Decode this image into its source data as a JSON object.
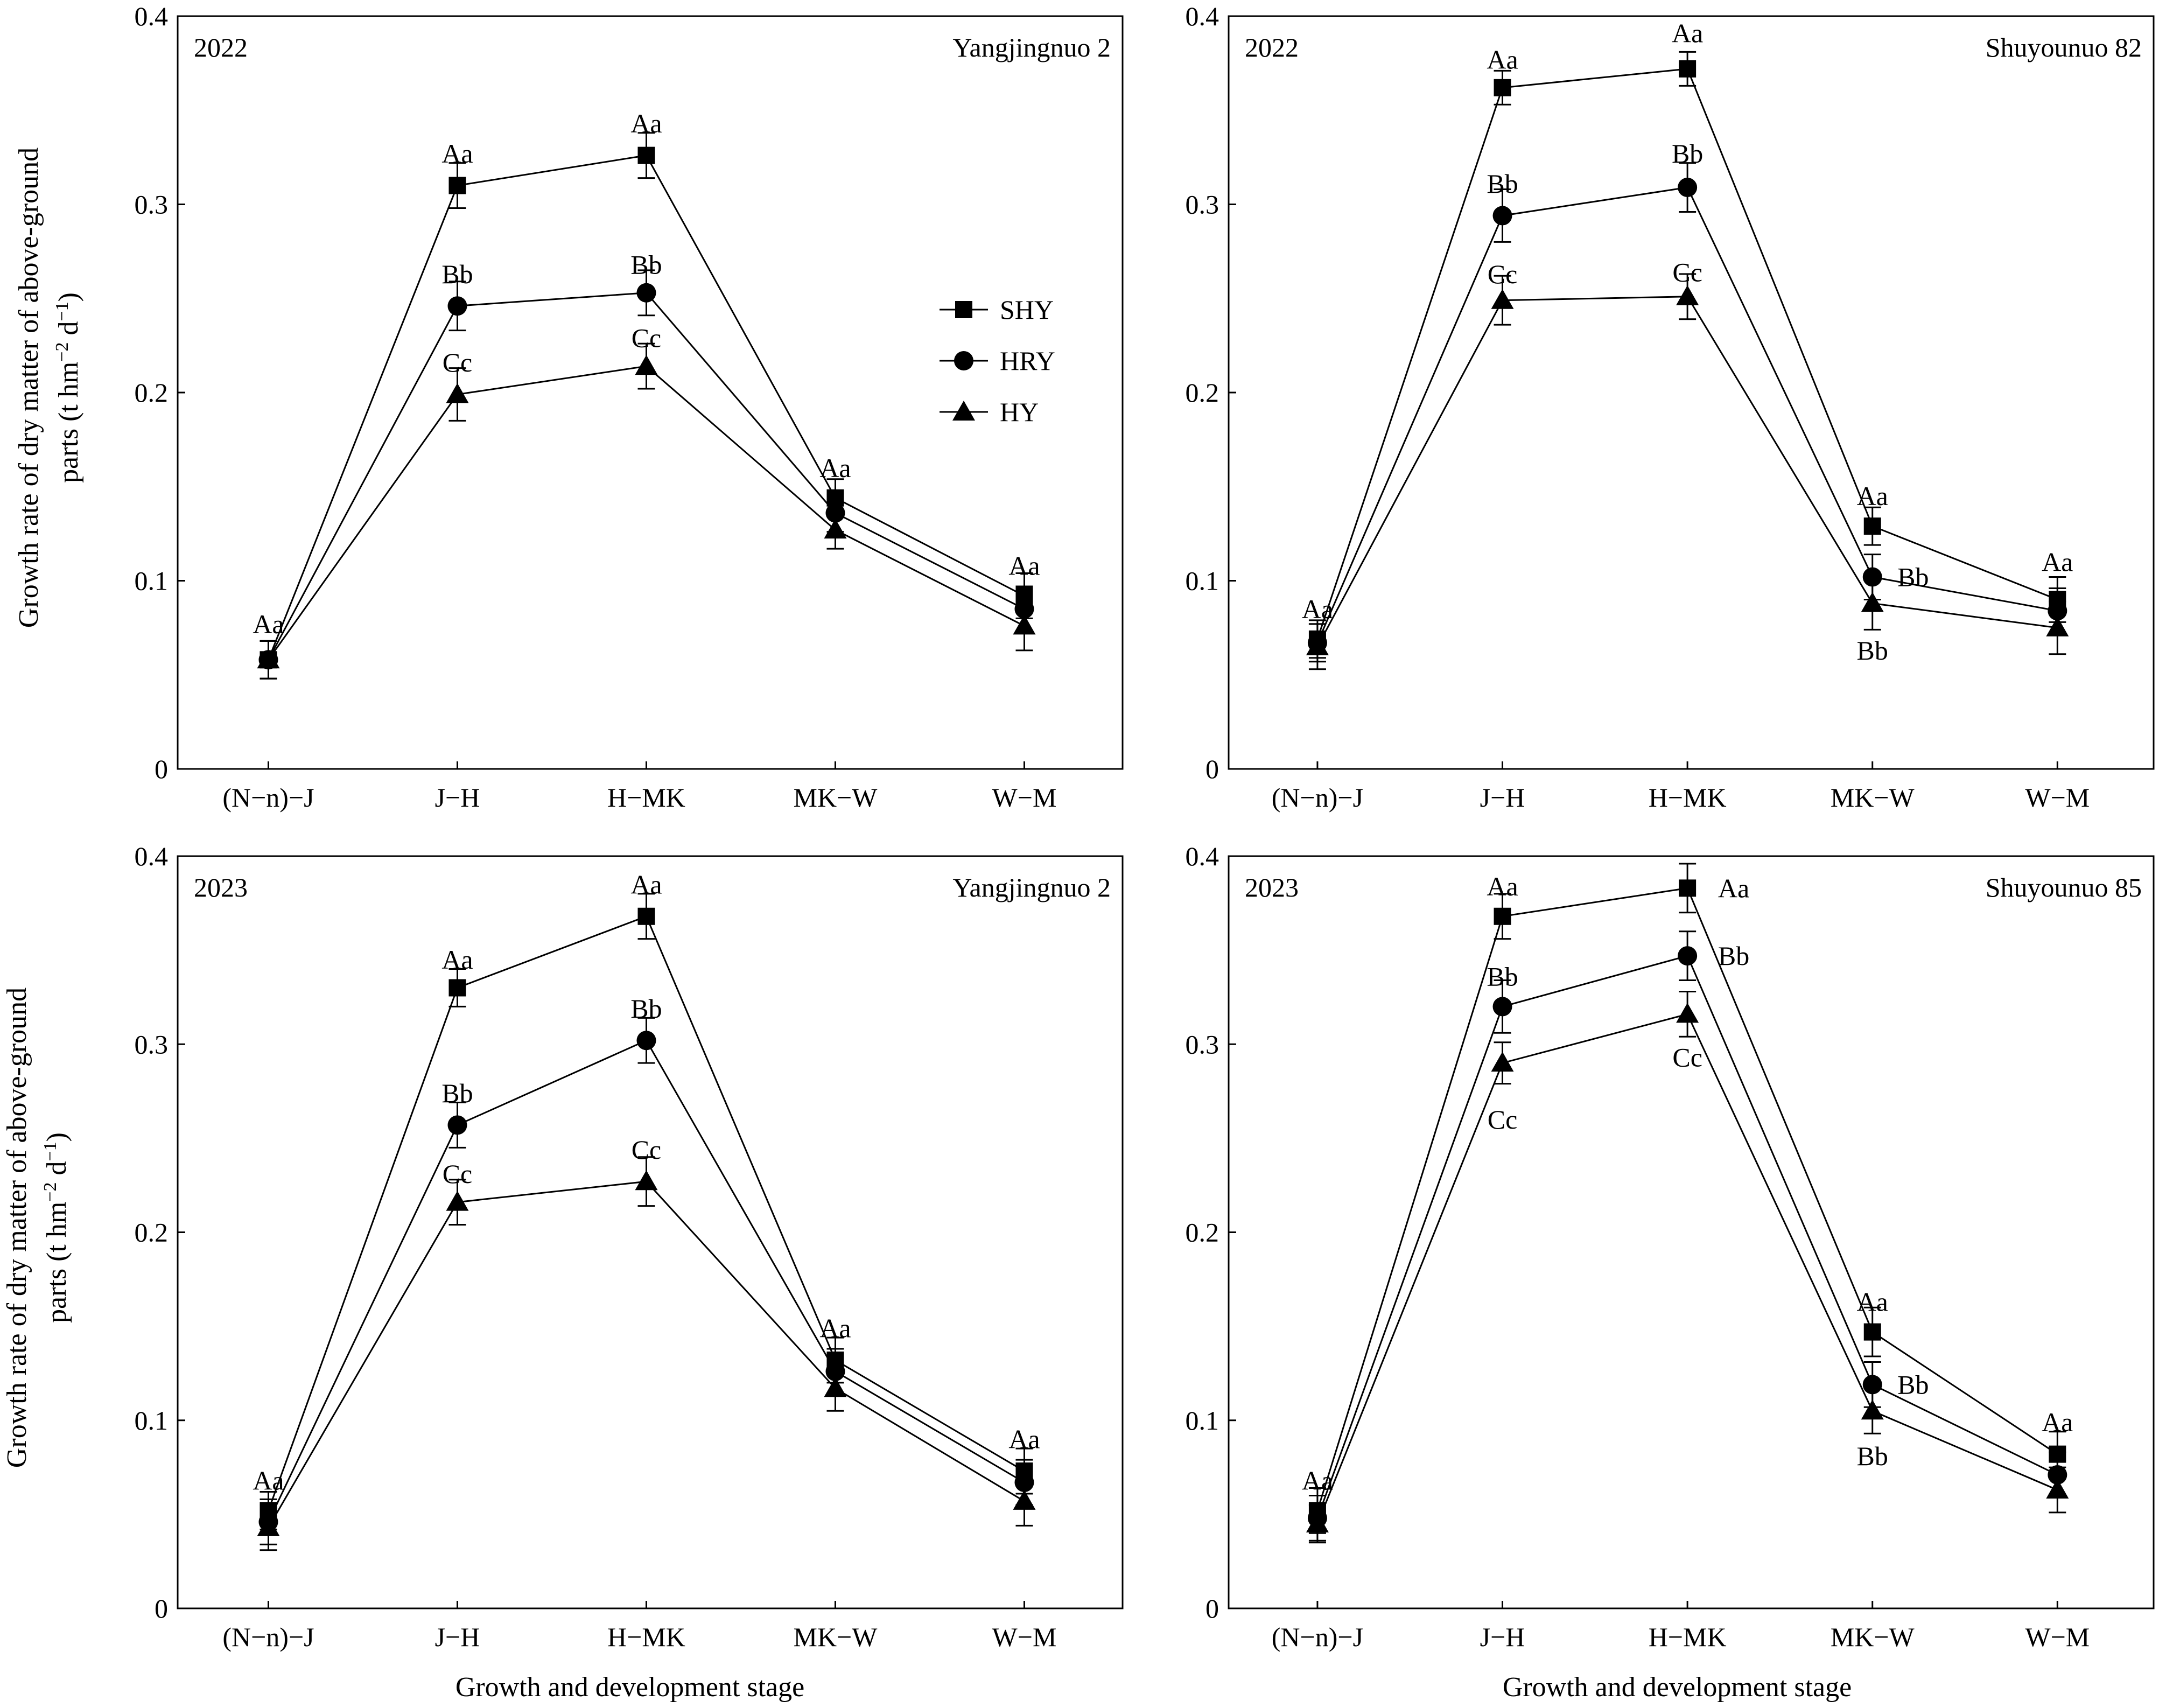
{
  "figure": {
    "y_axis_title_line1": "Growth rate of dry matter of above-ground",
    "y_axis_title_line2_prefix": "parts (t hm",
    "y_axis_title_line2_exp1": "−2",
    "y_axis_title_line2_mid": " d",
    "y_axis_title_line2_exp2": "−1",
    "y_axis_title_line2_suffix": ")",
    "x_axis_title": "Growth and development stage"
  },
  "legend": {
    "items": [
      {
        "label": "SHY",
        "marker": "square"
      },
      {
        "label": "HRY",
        "marker": "circle"
      },
      {
        "label": "HY",
        "marker": "triangle"
      }
    ]
  },
  "colors": {
    "line": "#000000",
    "background": "#ffffff"
  },
  "chart_data": [
    {
      "type": "line",
      "year_label": "2022",
      "variety_label": "Yangjingnuo 2",
      "categories": [
        "(N−n)−J",
        "J−H",
        "H−MK",
        "MK−W",
        "W−M"
      ],
      "ylim": [
        0,
        0.4
      ],
      "yticks": [
        "0",
        "0.1",
        "0.2",
        "0.3",
        "0.4"
      ],
      "series": [
        {
          "name": "SHY",
          "marker": "square",
          "values": [
            0.058,
            0.31,
            0.326,
            0.144,
            0.092
          ],
          "errors": [
            0.01,
            0.012,
            0.012,
            0.01,
            0.012
          ]
        },
        {
          "name": "HRY",
          "marker": "circle",
          "values": [
            0.058,
            0.246,
            0.253,
            0.136,
            0.085
          ],
          "errors": [
            0.01,
            0.013,
            0.012,
            0.01,
            0.012
          ]
        },
        {
          "name": "HY",
          "marker": "triangle",
          "values": [
            0.058,
            0.199,
            0.214,
            0.127,
            0.076
          ],
          "errors": [
            0.01,
            0.014,
            0.012,
            0.01,
            0.013
          ]
        }
      ],
      "annotations": [
        {
          "text": "Aa",
          "cat": 0,
          "y": 0.077
        },
        {
          "text": "Aa",
          "cat": 1,
          "y": 0.327
        },
        {
          "text": "Bb",
          "cat": 1,
          "y": 0.263
        },
        {
          "text": "Cc",
          "cat": 1,
          "y": 0.216
        },
        {
          "text": "Aa",
          "cat": 2,
          "y": 0.343
        },
        {
          "text": "Bb",
          "cat": 2,
          "y": 0.268
        },
        {
          "text": "Cc",
          "cat": 2,
          "y": 0.229
        },
        {
          "text": "Aa",
          "cat": 3,
          "y": 0.16
        },
        {
          "text": "Aa",
          "cat": 4,
          "y": 0.108
        }
      ]
    },
    {
      "type": "line",
      "year_label": "2022",
      "variety_label": "Shuyounuo 82",
      "categories": [
        "(N−n)−J",
        "J−H",
        "H−MK",
        "MK−W",
        "W−M"
      ],
      "ylim": [
        0,
        0.4
      ],
      "yticks": [
        "0",
        "0.1",
        "0.2",
        "0.3",
        "0.4"
      ],
      "series": [
        {
          "name": "SHY",
          "marker": "square",
          "values": [
            0.069,
            0.362,
            0.372,
            0.129,
            0.09
          ],
          "errors": [
            0.01,
            0.009,
            0.009,
            0.01,
            0.012
          ]
        },
        {
          "name": "HRY",
          "marker": "circle",
          "values": [
            0.067,
            0.294,
            0.309,
            0.102,
            0.084
          ],
          "errors": [
            0.01,
            0.014,
            0.013,
            0.012,
            0.012
          ]
        },
        {
          "name": "HY",
          "marker": "triangle",
          "values": [
            0.065,
            0.249,
            0.251,
            0.088,
            0.075
          ],
          "errors": [
            0.012,
            0.013,
            0.012,
            0.014,
            0.014
          ]
        }
      ],
      "annotations": [
        {
          "text": "Aa",
          "cat": 0,
          "y": 0.085
        },
        {
          "text": "Aa",
          "cat": 1,
          "y": 0.377
        },
        {
          "text": "Bb",
          "cat": 1,
          "y": 0.311
        },
        {
          "text": "Cc",
          "cat": 1,
          "y": 0.263
        },
        {
          "text": "Aa",
          "cat": 2,
          "y": 0.391
        },
        {
          "text": "Bb",
          "cat": 2,
          "y": 0.327
        },
        {
          "text": "Cc",
          "cat": 2,
          "y": 0.264
        },
        {
          "text": "Aa",
          "cat": 3,
          "y": 0.145
        },
        {
          "text": "Bb",
          "cat": 3,
          "y": 0.102,
          "dx": 0.22
        },
        {
          "text": "Bb",
          "cat": 3,
          "y": 0.063
        },
        {
          "text": "Aa",
          "cat": 4,
          "y": 0.11
        }
      ]
    },
    {
      "type": "line",
      "year_label": "2023",
      "variety_label": "Yangjingnuo 2",
      "categories": [
        "(N−n)−J",
        "J−H",
        "H−MK",
        "MK−W",
        "W−M"
      ],
      "ylim": [
        0,
        0.4
      ],
      "yticks": [
        "0",
        "0.1",
        "0.2",
        "0.3",
        "0.4"
      ],
      "series": [
        {
          "name": "SHY",
          "marker": "square",
          "values": [
            0.052,
            0.33,
            0.368,
            0.132,
            0.073
          ],
          "errors": [
            0.01,
            0.01,
            0.012,
            0.012,
            0.012
          ]
        },
        {
          "name": "HRY",
          "marker": "circle",
          "values": [
            0.046,
            0.257,
            0.302,
            0.126,
            0.067
          ],
          "errors": [
            0.012,
            0.012,
            0.012,
            0.012,
            0.012
          ]
        },
        {
          "name": "HY",
          "marker": "triangle",
          "values": [
            0.043,
            0.216,
            0.227,
            0.117,
            0.057
          ],
          "errors": [
            0.012,
            0.012,
            0.013,
            0.012,
            0.013
          ]
        }
      ],
      "annotations": [
        {
          "text": "Aa",
          "cat": 0,
          "y": 0.068
        },
        {
          "text": "Aa",
          "cat": 1,
          "y": 0.345
        },
        {
          "text": "Bb",
          "cat": 1,
          "y": 0.274
        },
        {
          "text": "Cc",
          "cat": 1,
          "y": 0.231
        },
        {
          "text": "Aa",
          "cat": 2,
          "y": 0.385
        },
        {
          "text": "Bb",
          "cat": 2,
          "y": 0.319
        },
        {
          "text": "Cc",
          "cat": 2,
          "y": 0.244
        },
        {
          "text": "Aa",
          "cat": 3,
          "y": 0.149
        },
        {
          "text": "Aa",
          "cat": 4,
          "y": 0.09
        }
      ]
    },
    {
      "type": "line",
      "year_label": "2023",
      "variety_label": "Shuyounuo 85",
      "categories": [
        "(N−n)−J",
        "J−H",
        "H−MK",
        "MK−W",
        "W−M"
      ],
      "ylim": [
        0,
        0.4
      ],
      "yticks": [
        "0",
        "0.1",
        "0.2",
        "0.3",
        "0.4"
      ],
      "series": [
        {
          "name": "SHY",
          "marker": "square",
          "values": [
            0.052,
            0.368,
            0.383,
            0.147,
            0.082
          ],
          "errors": [
            0.012,
            0.012,
            0.013,
            0.013,
            0.012
          ]
        },
        {
          "name": "HRY",
          "marker": "circle",
          "values": [
            0.048,
            0.32,
            0.347,
            0.119,
            0.071
          ],
          "errors": [
            0.012,
            0.014,
            0.013,
            0.012,
            0.012
          ]
        },
        {
          "name": "HY",
          "marker": "triangle",
          "values": [
            0.045,
            0.29,
            0.316,
            0.105,
            0.063
          ],
          "errors": [
            0.01,
            0.011,
            0.012,
            0.012,
            0.012
          ]
        }
      ],
      "annotations": [
        {
          "text": "Aa",
          "cat": 0,
          "y": 0.068
        },
        {
          "text": "Aa",
          "cat": 1,
          "y": 0.384
        },
        {
          "text": "Bb",
          "cat": 1,
          "y": 0.336
        },
        {
          "text": "Cc",
          "cat": 1,
          "y": 0.26
        },
        {
          "text": "Aa",
          "cat": 2,
          "y": 0.383,
          "dx": 0.25
        },
        {
          "text": "Bb",
          "cat": 2,
          "y": 0.347,
          "dx": 0.25
        },
        {
          "text": "Cc",
          "cat": 2,
          "y": 0.293
        },
        {
          "text": "Aa",
          "cat": 3,
          "y": 0.163
        },
        {
          "text": "Bb",
          "cat": 3,
          "y": 0.119,
          "dx": 0.22
        },
        {
          "text": "Bb",
          "cat": 3,
          "y": 0.081
        },
        {
          "text": "Aa",
          "cat": 4,
          "y": 0.099
        }
      ]
    }
  ]
}
